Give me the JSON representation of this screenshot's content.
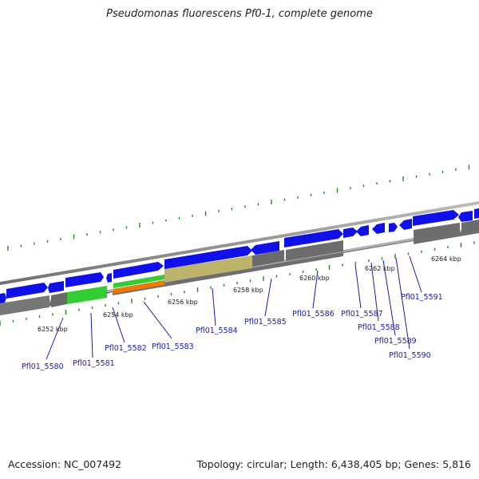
{
  "title": "Pseudomonas fluorescens Pf0-1, complete genome",
  "footer": {
    "accession": "Accession: NC_007492",
    "summary": "Topology: circular; Length: 6,438,405 bp; Genes: 5,816"
  },
  "ticks": [
    "6252 kbp",
    "6254 kbp",
    "6256 kbp",
    "6258 kbp",
    "6260 kbp",
    "6262 kbp",
    "6264 kbp"
  ],
  "genes": [
    "Pfl01_5580",
    "Pfl01_5581",
    "Pfl01_5582",
    "Pfl01_5583",
    "Pfl01_5584",
    "Pfl01_5585",
    "Pfl01_5586",
    "Pfl01_5587",
    "Pfl01_5588",
    "Pfl01_5589",
    "Pfl01_5590",
    "Pfl01_5591"
  ],
  "colors": {
    "forward_cds": "#1010e8",
    "reverse_cds": "#707070",
    "green_feature": "#33cc33",
    "orange_feature": "#ee7a00",
    "khaki_feature": "#bdb36b",
    "backbone": "#8c8c8c",
    "gc_tick": "#228822",
    "label": "#1a1aaa"
  }
}
